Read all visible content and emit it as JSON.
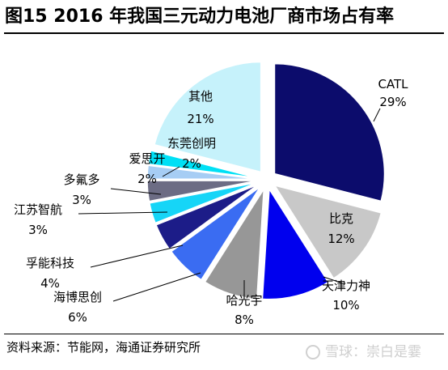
{
  "title": "图15 2016 年我国三元动力电池厂商市场占有率",
  "source": "资料来源：节能网，海通证券研究所",
  "watermark": "雪球：崇白是霎",
  "colors": {
    "CATL": "#0c0c6c",
    "比克": "#c8c8c8",
    "天津力神": "#0000ee",
    "哈光宇": "#979797",
    "海博思创": "#3a6cf2",
    "孚能科技": "#1c1c88",
    "江苏智航": "#16d5f7",
    "多氟多": "#6c6c84",
    "爱思开": "#a6cdf4",
    "东莞创明": "#00e0f5",
    "其他": "#c6f2fb"
  },
  "chart_data": {
    "type": "pie",
    "title": "2016 年我国三元动力电池厂商市场占有率",
    "start_angle": "12 o'clock, clockwise",
    "categories": [
      "CATL",
      "比克",
      "天津力神",
      "哈光宇",
      "海博思创",
      "孚能科技",
      "江苏智航",
      "多氟多",
      "爱思开",
      "东莞创明",
      "其他"
    ],
    "values": [
      29,
      12,
      10,
      8,
      6,
      4,
      3,
      3,
      2,
      2,
      21
    ],
    "labels": [
      "29%",
      "12%",
      "10%",
      "8%",
      "6%",
      "4%",
      "3%",
      "3%",
      "2%",
      "2%",
      "21%"
    ],
    "unit": "%"
  }
}
